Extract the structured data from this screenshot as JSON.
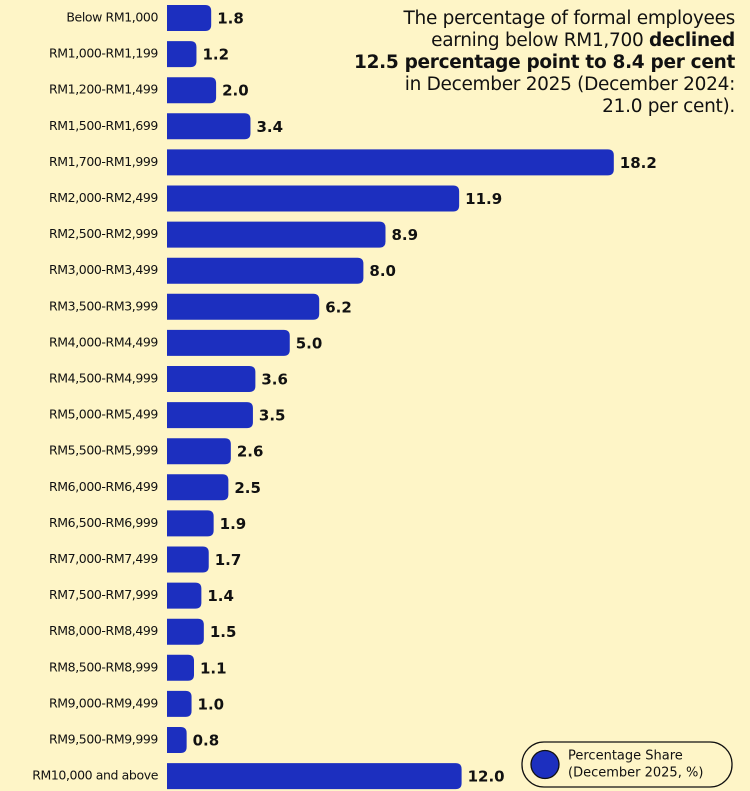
{
  "chart_data": {
    "type": "barh",
    "categories": [
      "Below RM1,000",
      "RM1,000-RM1,199",
      "RM1,200-RM1,499",
      "RM1,500-RM1,699",
      "RM1,700-RM1,999",
      "RM2,000-RM2,499",
      "RM2,500-RM2,999",
      "RM3,000-RM3,499",
      "RM3,500-RM3,999",
      "RM4,000-RM4,499",
      "RM4,500-RM4,999",
      "RM5,000-RM5,499",
      "RM5,500-RM5,999",
      "RM6,000-RM6,499",
      "RM6,500-RM6,999",
      "RM7,000-RM7,499",
      "RM7,500-RM7,999",
      "RM8,000-RM8,499",
      "RM8,500-RM8,999",
      "RM9,000-RM9,499",
      "RM9,500-RM9,999",
      "RM10,000 and above"
    ],
    "series": [
      {
        "name": "Percentage Share",
        "legend_note": "(December 2025, %)",
        "color": "#1c2fbf",
        "values": [
          1.8,
          1.2,
          2.0,
          3.4,
          18.2,
          11.9,
          8.9,
          8.0,
          6.2,
          5.0,
          3.6,
          3.5,
          2.6,
          2.5,
          1.9,
          1.7,
          1.4,
          1.5,
          1.1,
          1.0,
          0.8,
          12.0
        ],
        "value_labels": [
          "1.8",
          "1.2",
          "2.0",
          "3.4",
          "18.2",
          "11.9",
          "8.9",
          "8.0",
          "6.2",
          "5.0",
          "3.6",
          "3.5",
          "2.6",
          "2.5",
          "1.9",
          "1.7",
          "1.4",
          "1.5",
          "1.1",
          "1.0",
          "0.8",
          "12.0"
        ]
      }
    ],
    "xlim": [
      0,
      20
    ],
    "annotation": {
      "lines": [
        [
          {
            "text": "The percentage of formal employees",
            "bold": false
          }
        ],
        [
          {
            "text": "earning below RM1,700 ",
            "bold": false
          },
          {
            "text": "declined",
            "bold": true
          }
        ],
        [
          {
            "text": "12.5 percentage point to 8.4 per cent",
            "bold": true
          }
        ],
        [
          {
            "text": "in December 2025 (December 2024:",
            "bold": false
          }
        ],
        [
          {
            "text": "21.0 per cent).",
            "bold": false
          }
        ]
      ]
    }
  }
}
